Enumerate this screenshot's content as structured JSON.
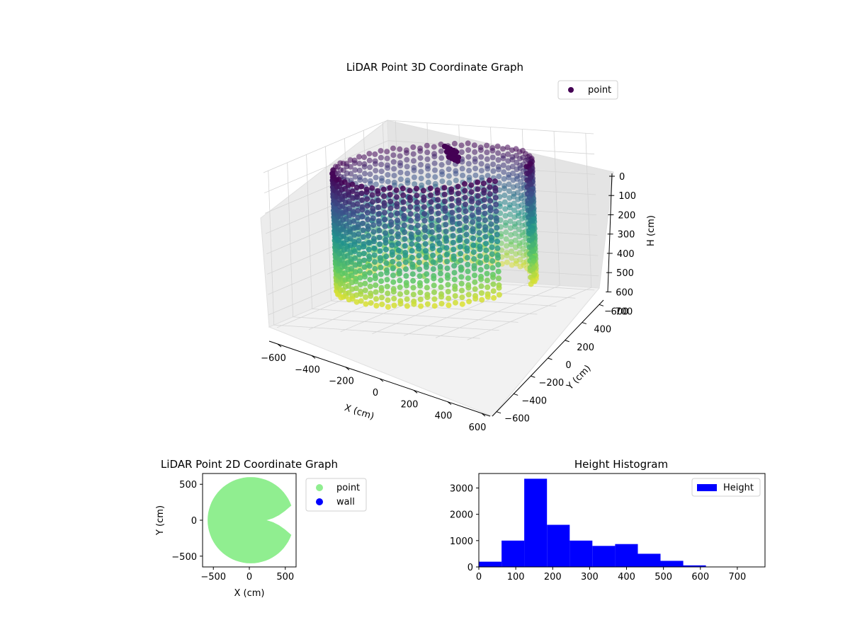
{
  "chart_data": [
    {
      "type": "scatter3d",
      "title": "LiDAR Point 3D Coordinate Graph",
      "xlabel": "X (cm)",
      "ylabel": "Y (cm)",
      "zlabel": "H (cm)",
      "xticks": [
        "−600",
        "−400",
        "−200",
        "0",
        "200",
        "400",
        "600"
      ],
      "yticks": [
        "−600",
        "−400",
        "−200",
        "0",
        "200",
        "400",
        "600"
      ],
      "zticks": [
        "0",
        "100",
        "200",
        "300",
        "400",
        "500",
        "600",
        "700"
      ],
      "xlim": [
        -650,
        650
      ],
      "ylim": [
        -650,
        650
      ],
      "zlim": [
        0,
        760
      ],
      "z_inverted": true,
      "colormap": "viridis",
      "legend": [
        {
          "name": "point",
          "color": "#440154"
        }
      ],
      "legend_loc": "upper right",
      "grid": true
    },
    {
      "type": "scatter",
      "title": "LiDAR Point 2D Coordinate Graph",
      "xlabel": "X (cm)",
      "ylabel": "Y (cm)",
      "xticks": [
        "−500",
        "0",
        "500"
      ],
      "yticks": [
        "500",
        "0",
        "−500"
      ],
      "xlim": [
        -650,
        650
      ],
      "ylim": [
        -650,
        650
      ],
      "series": [
        {
          "name": "point",
          "color": "#90ee90"
        },
        {
          "name": "wall",
          "color": "#0000ff"
        }
      ],
      "legend_loc": "outside upper right"
    },
    {
      "type": "bar",
      "title": "Height Histogram",
      "xticks": [
        "0",
        "100",
        "200",
        "300",
        "400",
        "500",
        "600",
        "700"
      ],
      "yticks": [
        "0",
        "1000",
        "2000",
        "3000"
      ],
      "xlim": [
        0,
        775
      ],
      "ylim": [
        0,
        3550
      ],
      "bin_edges": [
        0,
        61.5,
        123,
        184.5,
        246,
        307.5,
        369,
        430.5,
        492,
        553.5,
        615,
        676.5,
        738
      ],
      "values": [
        200,
        1000,
        3350,
        1600,
        1000,
        800,
        870,
        500,
        230,
        60,
        10,
        5
      ],
      "series": [
        {
          "name": "Height",
          "color": "#0000ff"
        }
      ],
      "legend_loc": "upper right"
    }
  ]
}
